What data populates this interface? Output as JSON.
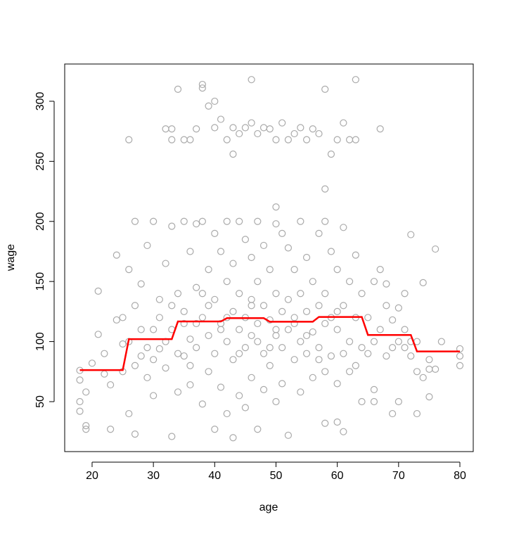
{
  "chart_data": {
    "type": "scatter",
    "x_label": "age",
    "y_label": "wage",
    "xlim": [
      15.53,
      82.18
    ],
    "ylim": [
      8.43,
      331.0
    ],
    "xticks": [
      20,
      30,
      40,
      50,
      60,
      70,
      80
    ],
    "yticks": [
      50,
      100,
      150,
      200,
      250,
      300
    ],
    "series": [
      {
        "type": "scatter",
        "color": "#aaaaaa",
        "x": [
          26,
          32,
          33,
          33,
          36,
          37,
          38,
          38,
          39,
          40,
          40,
          41,
          42,
          43,
          43,
          44,
          46,
          46,
          47,
          48,
          49,
          50,
          51,
          53,
          54,
          55,
          56,
          57,
          58,
          59,
          60,
          61,
          62,
          63,
          63,
          67,
          35,
          45,
          52,
          34,
          58,
          50,
          72,
          76,
          74,
          68,
          70,
          71,
          73,
          74,
          75,
          76,
          77,
          80,
          80,
          80,
          73,
          75,
          70,
          69,
          66,
          61,
          60,
          58,
          43,
          33,
          27,
          19,
          19,
          23,
          18,
          18,
          18,
          18,
          19,
          20,
          21,
          21,
          22,
          22,
          23,
          24,
          24,
          25,
          25,
          26,
          26,
          27,
          27,
          28,
          28,
          29,
          29,
          30,
          30,
          30,
          31,
          31,
          32,
          32,
          33,
          33,
          34,
          34,
          35,
          35,
          35,
          36,
          36,
          36,
          37,
          37,
          37,
          38,
          38,
          38,
          39,
          39,
          39,
          40,
          40,
          40,
          40,
          41,
          41,
          41,
          42,
          42,
          42,
          42,
          43,
          43,
          43,
          44,
          44,
          44,
          44,
          45,
          45,
          45,
          45,
          46,
          46,
          46,
          46,
          47,
          47,
          47,
          47,
          48,
          48,
          48,
          48,
          49,
          49,
          49,
          50,
          50,
          50,
          50,
          51,
          51,
          51,
          51,
          52,
          52,
          52,
          52,
          53,
          53,
          53,
          54,
          54,
          54,
          54,
          55,
          55,
          55,
          56,
          56,
          56,
          57,
          57,
          57,
          58,
          58,
          58,
          58,
          59,
          59,
          59,
          60,
          60,
          60,
          61,
          61,
          61,
          62,
          62,
          62,
          63,
          63,
          63,
          64,
          64,
          64,
          65,
          65,
          66,
          66,
          66,
          67,
          67,
          68,
          68,
          69,
          69,
          70,
          71,
          71,
          72,
          72,
          73,
          75,
          25,
          26,
          27,
          28,
          29,
          30,
          31,
          32,
          33,
          34,
          35,
          36,
          38,
          42,
          46,
          50,
          44,
          47,
          53,
          55,
          49,
          41,
          39,
          57,
          60,
          37
        ],
        "values": [
          268,
          277,
          268,
          277,
          268,
          277,
          311,
          314,
          296,
          300,
          278,
          285,
          268,
          256,
          278,
          273,
          318,
          282,
          273,
          278,
          277,
          268,
          282,
          273,
          278,
          268,
          277,
          273,
          310,
          256,
          268,
          282,
          268,
          318,
          268,
          277,
          268,
          278,
          268,
          310,
          227,
          212,
          189,
          177,
          149,
          148,
          128,
          110,
          100,
          70,
          85,
          77,
          100,
          94,
          88,
          80,
          40,
          54,
          50,
          40,
          50,
          25,
          33,
          32,
          20,
          21,
          23,
          30,
          27,
          27,
          42,
          50,
          68,
          76,
          58,
          82,
          106,
          142,
          73,
          90,
          64,
          172,
          118,
          98,
          120,
          160,
          40,
          200,
          130,
          148,
          88,
          180,
          70,
          200,
          110,
          55,
          94,
          135,
          165,
          78,
          196,
          110,
          140,
          58,
          200,
          125,
          88,
          175,
          102,
          64,
          198,
          145,
          95,
          200,
          120,
          48,
          160,
          105,
          75,
          190,
          135,
          90,
          27,
          175,
          115,
          62,
          200,
          150,
          100,
          40,
          165,
          125,
          85,
          200,
          140,
          110,
          55,
          185,
          120,
          95,
          45,
          170,
          135,
          105,
          70,
          200,
          150,
          115,
          27,
          180,
          130,
          90,
          60,
          160,
          118,
          80,
          198,
          140,
          105,
          50,
          190,
          125,
          95,
          65,
          178,
          135,
          110,
          22,
          160,
          115,
          85,
          200,
          140,
          100,
          58,
          170,
          125,
          90,
          150,
          108,
          70,
          190,
          130,
          95,
          200,
          140,
          115,
          75,
          175,
          120,
          88,
          160,
          110,
          65,
          195,
          130,
          90,
          150,
          100,
          75,
          172,
          120,
          80,
          140,
          95,
          50,
          120,
          90,
          150,
          100,
          60,
          160,
          110,
          130,
          88,
          118,
          95,
          100,
          140,
          95,
          100,
          88,
          75,
          77,
          75,
          100,
          80,
          110,
          95,
          85,
          120,
          100,
          130,
          90,
          115,
          80,
          140,
          120,
          130,
          110,
          90,
          100,
          120,
          105,
          95,
          110,
          130,
          85,
          125,
          115
        ]
      },
      {
        "type": "line",
        "color": "#ff0000",
        "x": [
          18,
          25,
          26,
          33,
          34,
          41,
          42,
          48,
          49,
          56,
          57,
          64,
          65,
          72,
          73,
          80
        ],
        "values": [
          76.3,
          76.3,
          102,
          102,
          116.7,
          116.7,
          119.5,
          119.5,
          116.5,
          116.5,
          120.5,
          120.5,
          105.5,
          105.5,
          91.8,
          91.8
        ]
      }
    ]
  }
}
